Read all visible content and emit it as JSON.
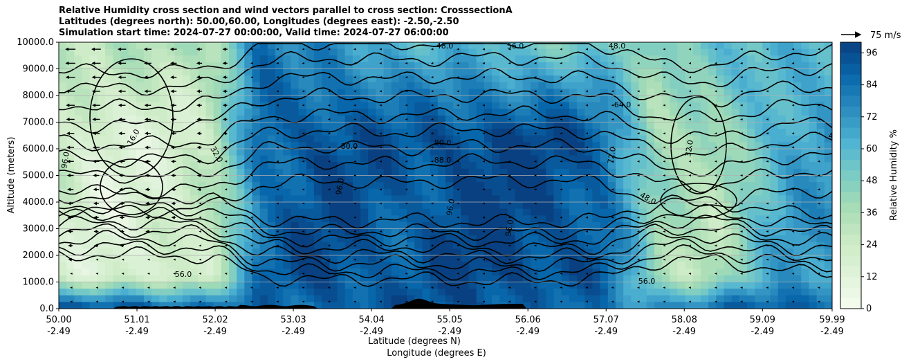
{
  "title_lines": [
    "Relative Humidity cross section and wind vectors parallel to cross section: CrosssectionA",
    "Latitudes (degrees north): 50.00,60.00, Longitudes (degrees east): -2.50,-2.50",
    "Simulation start time: 2024-07-27 00:00:00, Valid time: 2024-07-27 06:00:00"
  ],
  "chart_data": {
    "type": "heatmap",
    "ylabel": "Altitude (meters)",
    "xlabel_lines": [
      "Latitude (degrees N)",
      "Longitude (degrees E)"
    ],
    "y_ticks": [
      "0.0",
      "1000.0",
      "2000.0",
      "3000.0",
      "4000.0",
      "5000.0",
      "6000.0",
      "7000.0",
      "8000.0",
      "9000.0",
      "10000.0"
    ],
    "ylim": [
      0,
      10000
    ],
    "x_tick_lat": [
      "50.00",
      "51.01",
      "52.02",
      "53.03",
      "54.04",
      "55.05",
      "56.06",
      "57.07",
      "58.08",
      "59.09",
      "59.99"
    ],
    "x_tick_lon": [
      "-2.49",
      "-2.49",
      "-2.49",
      "-2.49",
      "-2.49",
      "-2.49",
      "-2.49",
      "-2.49",
      "-2.49",
      "-2.49",
      "-2.49"
    ],
    "grid": "horizontal",
    "colorbar": {
      "label": "Relative Humidity %",
      "ticks": [
        "0",
        "12",
        "24",
        "36",
        "48",
        "60",
        "72",
        "84",
        "96"
      ],
      "range": [
        0,
        100
      ],
      "cmap": "GnBu"
    },
    "quiver_key": "75 m/s",
    "contour_labels": [
      "16.0",
      "24.0",
      "32.0",
      "40.0",
      "48.0",
      "56.0",
      "64.0",
      "72.0",
      "80.0",
      "88.0",
      "96.0"
    ],
    "rh_profile": {
      "lat": [
        50.0,
        50.5,
        51.0,
        51.5,
        52.0,
        52.3,
        52.6,
        53.0,
        53.5,
        54.0,
        54.5,
        55.0,
        55.5,
        56.0,
        56.5,
        57.0,
        57.3,
        57.7,
        58.0,
        58.5,
        59.0,
        59.5,
        59.99
      ],
      "mid_rh": [
        24,
        14,
        16,
        18,
        28,
        55,
        85,
        92,
        96,
        92,
        90,
        96,
        98,
        97,
        95,
        90,
        70,
        40,
        35,
        33,
        55,
        70,
        70
      ],
      "upper_rh": [
        35,
        30,
        32,
        35,
        40,
        60,
        85,
        70,
        75,
        70,
        60,
        55,
        60,
        55,
        50,
        45,
        50,
        40,
        55,
        60,
        55,
        60,
        65
      ],
      "low_rh": [
        95,
        95,
        92,
        92,
        90,
        88,
        85,
        80,
        90,
        95,
        92,
        90,
        95,
        92,
        85,
        80,
        75,
        78,
        80,
        85,
        90,
        92,
        93
      ]
    }
  }
}
